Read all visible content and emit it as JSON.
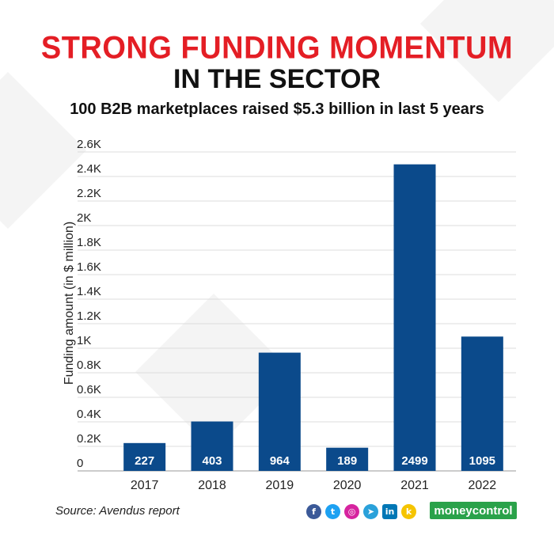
{
  "header": {
    "title_line1": "STRONG FUNDING MOMENTUM",
    "title_line2": "IN THE SECTOR",
    "subtitle": "100 B2B marketplaces raised $5.3 billion in last 5 years"
  },
  "chart_data": {
    "type": "bar",
    "categories": [
      "2017",
      "2018",
      "2019",
      "2020",
      "2021",
      "2022"
    ],
    "values": [
      227,
      403,
      964,
      189,
      2499,
      1095
    ],
    "data_labels": [
      "227",
      "403",
      "964",
      "189",
      "2499",
      "1095"
    ],
    "ylabel": "Funding amount (in $ million)",
    "xlabel": "",
    "ylim": [
      0,
      2600
    ],
    "yticks": [
      0,
      200,
      400,
      600,
      800,
      1000,
      1200,
      1400,
      1600,
      1800,
      2000,
      2200,
      2400,
      2600
    ],
    "ytick_labels": [
      "0",
      "0.2K",
      "0.4K",
      "0.6K",
      "0.8K",
      "1K",
      "1.2K",
      "1.4K",
      "1.6K",
      "1.8K",
      "2K",
      "2.2K",
      "2.4K",
      "2.6K"
    ],
    "grid": true,
    "bar_color": "#0b4a8b",
    "label_color": "#ffffff"
  },
  "footer": {
    "source": "Source: Avendus report",
    "socials": [
      {
        "icon": "facebook-icon",
        "glyph": "f",
        "color": "#3b5998"
      },
      {
        "icon": "twitter-icon",
        "glyph": "t",
        "color": "#1da1f2"
      },
      {
        "icon": "instagram-icon",
        "glyph": "◎",
        "color": "#d6249f"
      },
      {
        "icon": "telegram-icon",
        "glyph": "➤",
        "color": "#2aa1da"
      },
      {
        "icon": "linkedin-icon",
        "glyph": "in",
        "color": "#0077b5"
      },
      {
        "icon": "koo-icon",
        "glyph": "k",
        "color": "#f5c400"
      }
    ],
    "brand": "moneycontrol",
    "brand_color": "#2aa24a"
  }
}
